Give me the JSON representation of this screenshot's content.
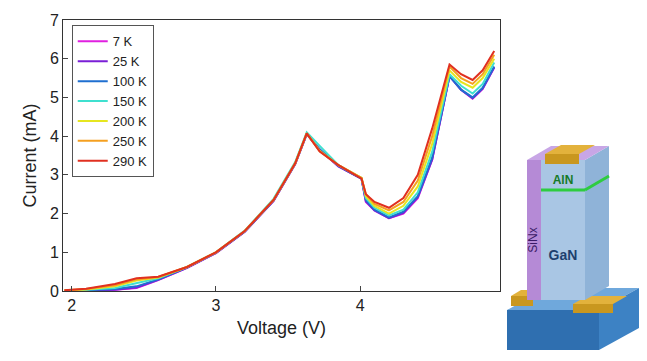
{
  "chart_data": {
    "type": "line",
    "x_label": "Voltage (V)",
    "y_label": "Current (mA)",
    "x": [
      1.95,
      2.1,
      2.3,
      2.45,
      2.6,
      2.8,
      3.0,
      3.2,
      3.4,
      3.55,
      3.63,
      3.72,
      3.85,
      3.97,
      4.01,
      4.04,
      4.1,
      4.2,
      4.3,
      4.4,
      4.5,
      4.62,
      4.7,
      4.78,
      4.85,
      4.93
    ],
    "series": [
      {
        "name": "7 K",
        "color": "#e020e0",
        "values": [
          0.0,
          0.01,
          0.03,
          0.08,
          0.28,
          0.6,
          0.98,
          1.53,
          2.33,
          3.28,
          4.05,
          3.65,
          3.22,
          2.98,
          2.9,
          2.3,
          2.08,
          1.88,
          2.0,
          2.4,
          3.4,
          5.55,
          5.2,
          4.97,
          5.22,
          5.77
        ]
      },
      {
        "name": "25 K",
        "color": "#7a1fd6",
        "values": [
          0.0,
          0.01,
          0.03,
          0.09,
          0.29,
          0.6,
          0.98,
          1.53,
          2.33,
          3.28,
          4.05,
          3.65,
          3.22,
          2.98,
          2.9,
          2.32,
          2.08,
          1.88,
          2.02,
          2.42,
          3.4,
          5.55,
          5.2,
          4.98,
          5.23,
          5.78
        ]
      },
      {
        "name": "100 K",
        "color": "#1f6fd0",
        "values": [
          0.0,
          0.02,
          0.05,
          0.12,
          0.3,
          0.61,
          0.99,
          1.54,
          2.34,
          3.29,
          4.06,
          3.66,
          3.23,
          2.98,
          2.9,
          2.35,
          2.1,
          1.9,
          2.05,
          2.45,
          3.45,
          5.55,
          5.2,
          5.0,
          5.25,
          5.8
        ]
      },
      {
        "name": "150 K",
        "color": "#3fe0cf",
        "values": [
          0.01,
          0.03,
          0.08,
          0.2,
          0.33,
          0.62,
          1.0,
          1.56,
          2.38,
          3.33,
          4.1,
          3.75,
          3.25,
          3.0,
          2.92,
          2.4,
          2.15,
          1.95,
          2.1,
          2.55,
          3.6,
          5.6,
          5.3,
          5.1,
          5.35,
          5.9
        ]
      },
      {
        "name": "200 K",
        "color": "#e6e620",
        "values": [
          0.01,
          0.04,
          0.12,
          0.27,
          0.35,
          0.62,
          1.0,
          1.55,
          2.35,
          3.3,
          4.07,
          3.62,
          3.25,
          3.0,
          2.92,
          2.45,
          2.2,
          2.0,
          2.2,
          2.7,
          3.8,
          5.7,
          5.4,
          5.25,
          5.5,
          6.0
        ]
      },
      {
        "name": "250 K",
        "color": "#f5a020",
        "values": [
          0.02,
          0.05,
          0.15,
          0.3,
          0.36,
          0.62,
          1.0,
          1.55,
          2.35,
          3.3,
          4.07,
          3.61,
          3.25,
          3.0,
          2.92,
          2.5,
          2.25,
          2.08,
          2.3,
          2.85,
          4.0,
          5.8,
          5.5,
          5.35,
          5.6,
          6.1
        ]
      },
      {
        "name": "290 K",
        "color": "#e03020",
        "values": [
          0.02,
          0.06,
          0.18,
          0.33,
          0.37,
          0.62,
          1.0,
          1.55,
          2.35,
          3.3,
          4.07,
          3.6,
          3.25,
          3.0,
          2.9,
          2.5,
          2.3,
          2.15,
          2.4,
          3.0,
          4.2,
          5.85,
          5.6,
          5.45,
          5.7,
          6.2
        ]
      }
    ],
    "xlim": [
      1.94,
      4.97
    ],
    "xticks": [
      2,
      3,
      4
    ],
    "ylim": [
      0,
      7
    ],
    "yticks": [
      0,
      1,
      2,
      3,
      4,
      5,
      6,
      7
    ],
    "grid": false,
    "legend": "upper left",
    "annotations": [
      "SiNx",
      "GaN",
      "AlN"
    ]
  }
}
